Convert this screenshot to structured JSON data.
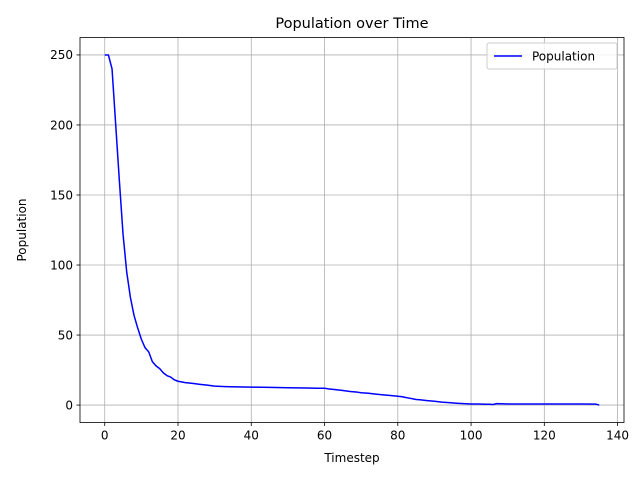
{
  "chart_data": {
    "type": "line",
    "title": "Population over Time",
    "xlabel": "Timestep",
    "ylabel": "Population",
    "xlim": [
      -6.75,
      141.75
    ],
    "ylim": [
      -12.45,
      262.45
    ],
    "xticks": [
      0,
      20,
      40,
      60,
      80,
      100,
      120,
      140
    ],
    "yticks": [
      0,
      50,
      100,
      150,
      200,
      250
    ],
    "grid": true,
    "legend_position": "top-right",
    "series": [
      {
        "name": "Population",
        "color": "#0000ff",
        "x": [
          0,
          1,
          2,
          3,
          4,
          5,
          6,
          7,
          8,
          9,
          10,
          11,
          12,
          13,
          14,
          15,
          16,
          17,
          18,
          19,
          20,
          22,
          24,
          26,
          28,
          30,
          33,
          36,
          40,
          45,
          50,
          55,
          58,
          60,
          61,
          63,
          65,
          67,
          69,
          70,
          72,
          74,
          76,
          78,
          80,
          81,
          82,
          83,
          84,
          85,
          86,
          88,
          90,
          92,
          94,
          96,
          98,
          100,
          102,
          104,
          105,
          106,
          107,
          108,
          110,
          115,
          120,
          125,
          130,
          134,
          135
        ],
        "y": [
          250,
          250,
          240,
          200,
          160,
          122,
          95,
          77,
          64,
          55,
          47,
          41,
          38,
          31,
          28,
          26,
          23,
          21,
          20,
          18,
          17,
          16,
          15.5,
          14.8,
          14.2,
          13.5,
          13.2,
          13,
          12.8,
          12.6,
          12.4,
          12.2,
          12,
          12,
          11.6,
          11,
          10.4,
          9.7,
          9.2,
          8.8,
          8.4,
          7.8,
          7.3,
          6.8,
          6.3,
          6,
          5.5,
          5,
          4.5,
          4,
          3.8,
          3.2,
          2.7,
          2.1,
          1.7,
          1.3,
          1,
          0.8,
          0.8,
          0.6,
          0.6,
          0.4,
          1,
          0.9,
          0.8,
          0.8,
          0.8,
          0.8,
          0.8,
          0.7,
          0
        ]
      }
    ]
  }
}
